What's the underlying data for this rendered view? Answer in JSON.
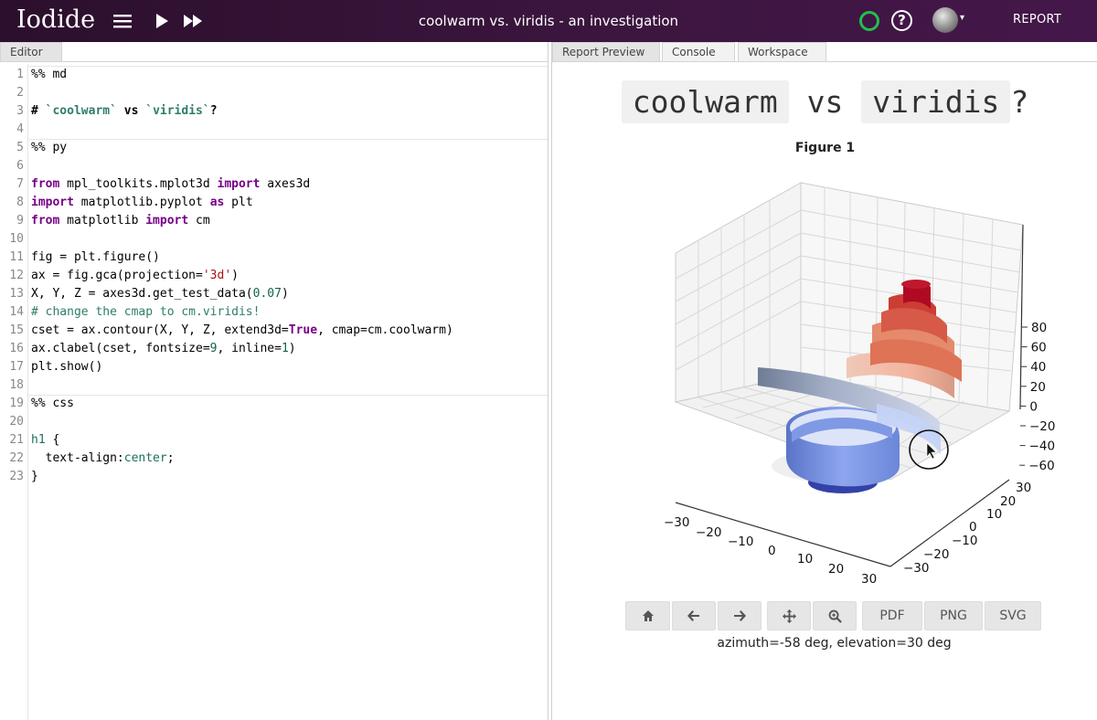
{
  "app": {
    "logo": "Iodide",
    "title": "coolwarm vs. viridis - an investigation",
    "report_label": "REPORT",
    "help_label": "?",
    "status_color": "#22c04a"
  },
  "editor": {
    "tab_label": "Editor",
    "lines": [
      {
        "n": "1"
      },
      {
        "n": "2"
      },
      {
        "n": "3"
      },
      {
        "n": "4"
      },
      {
        "n": "5"
      },
      {
        "n": "6"
      },
      {
        "n": "7"
      },
      {
        "n": "8"
      },
      {
        "n": "9"
      },
      {
        "n": "10"
      },
      {
        "n": "11"
      },
      {
        "n": "12"
      },
      {
        "n": "13"
      },
      {
        "n": "14"
      },
      {
        "n": "15"
      },
      {
        "n": "16"
      },
      {
        "n": "17"
      },
      {
        "n": "18"
      },
      {
        "n": "19"
      },
      {
        "n": "20"
      },
      {
        "n": "21"
      },
      {
        "n": "22"
      },
      {
        "n": "23"
      }
    ],
    "code": {
      "l1": "%% md",
      "l3a": "# ",
      "l3b": "`coolwarm`",
      "l3c": " vs ",
      "l3d": "`viridis`",
      "l3e": "?",
      "l5": "%% py",
      "l7a": "from",
      "l7b": " mpl_toolkits.mplot3d ",
      "l7c": "import",
      "l7d": " axes3d",
      "l8a": "import",
      "l8b": " matplotlib.pyplot ",
      "l8c": "as",
      "l8d": " plt",
      "l9a": "from",
      "l9b": " matplotlib ",
      "l9c": "import",
      "l9d": " cm",
      "l11": "fig = plt.figure()",
      "l12a": "ax = fig.gca(projection=",
      "l12b": "'3d'",
      "l12c": ")",
      "l13a": "X, Y, Z = axes3d.get_test_data(",
      "l13b": "0.07",
      "l13c": ")",
      "l14": "# change the cmap to cm.viridis!",
      "l15a": "cset = ax.contour(X, Y, Z, extend3d=",
      "l15b": "True",
      "l15c": ", cmap=cm.coolwarm)",
      "l16a": "ax.clabel(cset, fontsize=",
      "l16b": "9",
      "l16c": ", inline=",
      "l16d": "1",
      "l16e": ")",
      "l17": "plt.show()",
      "l19": "%% css",
      "l21a": "h1",
      "l21b": " {",
      "l22a": "  text-align:",
      "l22b": "center",
      "l22c": ";",
      "l23": "}"
    }
  },
  "right_tabs": [
    "Report Preview",
    "Console",
    "Workspace"
  ],
  "report": {
    "h1_a": "coolwarm",
    "h1_b": " vs ",
    "h1_c": "viridis",
    "h1_d": "?",
    "figure_title": "Figure 1",
    "toolbar": {
      "pdf": "PDF",
      "png": "PNG",
      "svg": "SVG"
    },
    "message": "azimuth=-58 deg, elevation=30 deg"
  },
  "chart_data": {
    "type": "3d-contour",
    "title": "Figure 1",
    "colormap": "coolwarm",
    "z_ticks": [
      "80",
      "60",
      "40",
      "20",
      "0",
      "−20",
      "−40",
      "−60"
    ],
    "x_ticks": [
      "−30",
      "−20",
      "−10",
      "0",
      "10",
      "20",
      "30"
    ],
    "y_ticks": [
      "30",
      "20",
      "10",
      "0",
      "−10",
      "−20",
      "−30"
    ],
    "zlim": [
      -70,
      90
    ],
    "xlim": [
      -30,
      30
    ],
    "ylim": [
      -30,
      30
    ]
  }
}
